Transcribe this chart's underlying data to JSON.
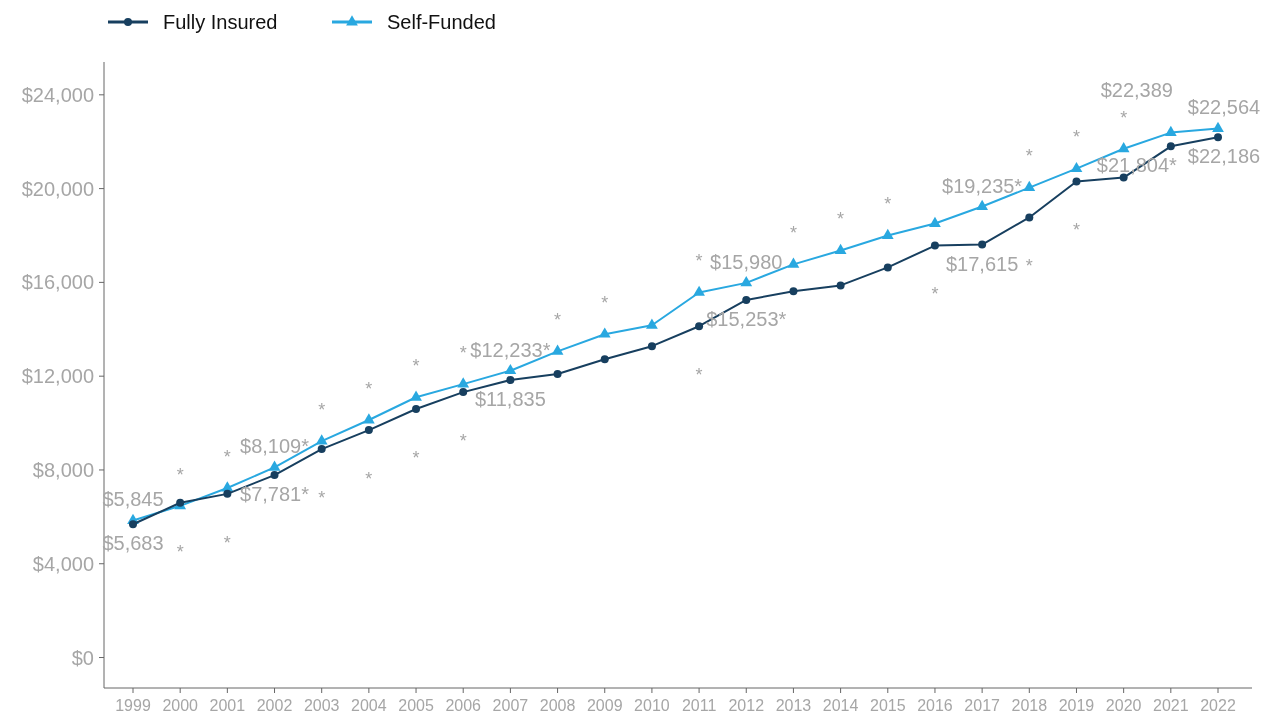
{
  "chart_data": {
    "type": "line",
    "categories": [
      "1999",
      "2000",
      "2001",
      "2002",
      "2003",
      "2004",
      "2005",
      "2006",
      "2007",
      "2008",
      "2009",
      "2010",
      "2011",
      "2012",
      "2013",
      "2014",
      "2015",
      "2016",
      "2017",
      "2018",
      "2019",
      "2020",
      "2021",
      "2022"
    ],
    "series": [
      {
        "name": "Fully Insured",
        "color": "#173f5f",
        "marker": "circle",
        "values": [
          5683,
          6600,
          6980,
          7781,
          8890,
          9700,
          10600,
          11320,
          11835,
          12090,
          12720,
          13280,
          14130,
          15253,
          15620,
          15870,
          16640,
          17570,
          17615,
          18770,
          20300,
          20470,
          21804,
          22186
        ],
        "value_labels": [
          "$5,683",
          null,
          null,
          "$7,781*",
          null,
          null,
          null,
          null,
          "$11,835",
          null,
          null,
          null,
          null,
          "$15,253*",
          null,
          null,
          null,
          null,
          "$17,615",
          null,
          null,
          null,
          "$21,804*",
          "$22,186"
        ]
      },
      {
        "name": "Self-Funded",
        "color": "#29a8e0",
        "marker": "triangle",
        "values": [
          5845,
          6470,
          7230,
          8109,
          9230,
          10130,
          11100,
          11660,
          12233,
          13060,
          13790,
          14170,
          15570,
          15980,
          16770,
          17360,
          18000,
          18510,
          19235,
          20040,
          20850,
          21700,
          22389,
          22564
        ],
        "value_labels": [
          "$5,845",
          null,
          null,
          "$8,109*",
          null,
          null,
          null,
          null,
          "$12,233*",
          null,
          null,
          null,
          null,
          "$15,980",
          null,
          null,
          null,
          null,
          "$19,235*",
          null,
          null,
          null,
          "$22,389",
          "$22,564"
        ]
      }
    ],
    "ylim": [
      -1300,
      25400
    ],
    "yticks": [
      {
        "value": 0,
        "label": "$0"
      },
      {
        "value": 4000,
        "label": "$4,000"
      },
      {
        "value": 8000,
        "label": "$8,000"
      },
      {
        "value": 12000,
        "label": "$12,000"
      },
      {
        "value": 16000,
        "label": "$16,000"
      },
      {
        "value": 20000,
        "label": "$20,000"
      },
      {
        "value": 24000,
        "label": "$24,000"
      }
    ],
    "grid": false,
    "legend": "top left",
    "line_style": "solid",
    "annotations": [
      {
        "text": "*",
        "x": "2000",
        "y": 6470
      },
      {
        "text": "*",
        "x": "2001",
        "y": 7230
      },
      {
        "text": "*",
        "x": "2003",
        "y": 9230
      },
      {
        "text": "*",
        "x": "2004",
        "y": 10130
      },
      {
        "text": "*",
        "x": "2005",
        "y": 11100
      },
      {
        "text": "*",
        "x": "2006",
        "y": 11660
      },
      {
        "text": "*",
        "x": "2008",
        "y": 13060
      },
      {
        "text": "*",
        "x": "2009",
        "y": 13790
      },
      {
        "text": "*",
        "x": "2011",
        "y": 15570
      },
      {
        "text": "*",
        "x": "2013",
        "y": 16770
      },
      {
        "text": "*",
        "x": "2014",
        "y": 17360
      },
      {
        "text": "*",
        "x": "2015",
        "y": 18000
      },
      {
        "text": "*",
        "x": "2018",
        "y": 20040
      },
      {
        "text": "*",
        "x": "2019",
        "y": 20850
      },
      {
        "text": "*",
        "x": "2020",
        "y": 21700
      },
      {
        "text": "*",
        "x": "2000",
        "y": 6600
      },
      {
        "text": "*",
        "x": "2001",
        "y": 6980
      },
      {
        "text": "*",
        "x": "2003",
        "y": 8890
      },
      {
        "text": "*",
        "x": "2004",
        "y": 9700
      },
      {
        "text": "*",
        "x": "2005",
        "y": 10600
      },
      {
        "text": "*",
        "x": "2006",
        "y": 11320
      },
      {
        "text": "*",
        "x": "2011",
        "y": 14130
      },
      {
        "text": "*",
        "x": "2016",
        "y": 17570
      },
      {
        "text": "*",
        "x": "2018",
        "y": 18770
      },
      {
        "text": "*",
        "x": "2019",
        "y": 20300
      }
    ]
  }
}
